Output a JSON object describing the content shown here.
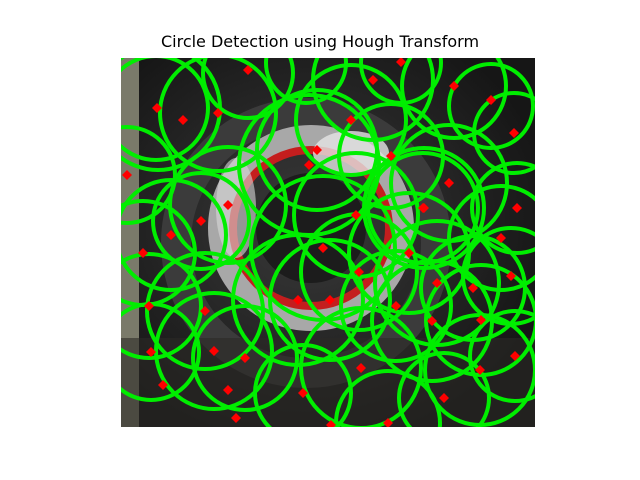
{
  "figure": {
    "title": "Circle Detection using Hough Transform"
  },
  "image": {
    "description_colors": {
      "circle_stroke": "#00ff00",
      "center_marker": "#ff0000",
      "background_dark": "#2a2a2a",
      "ring_gray": "#9a9a9a",
      "ring_red": "#c41e1e",
      "highlight": "#e8e8e8"
    },
    "circle_count_visible": "many",
    "marker_shape": "diamond",
    "overlay": "detected circles (green) with centers (red diamonds)"
  }
}
